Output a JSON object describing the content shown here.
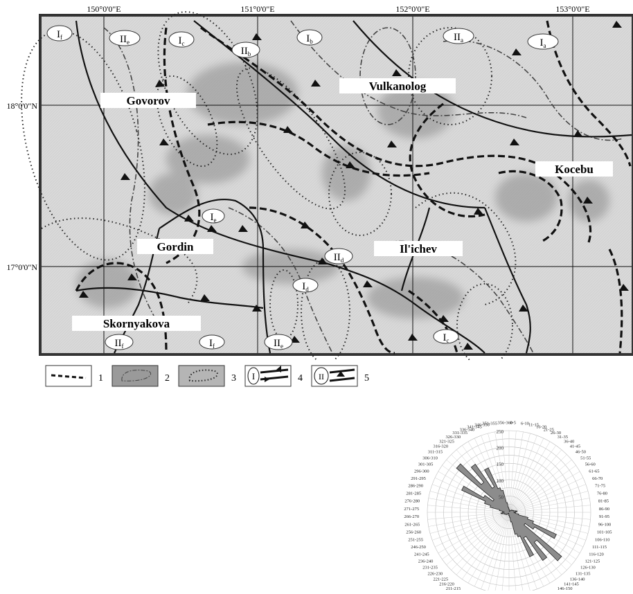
{
  "map": {
    "axis_labels": {
      "lon": [
        "150°0'0\"E",
        "151°0'0\"E",
        "152°0'0\"E",
        "153°0'0\"E"
      ],
      "lat": [
        "18°0'0\"N",
        "17°0'0\"N"
      ]
    },
    "seamounts": [
      "Govorov",
      "Vulkanolog",
      "Kocebu",
      "Gordin",
      "Il'ichev",
      "Skornyakova"
    ],
    "zone_labels": [
      {
        "main": "I",
        "sub": "f"
      },
      {
        "main": "II",
        "sub": "e"
      },
      {
        "main": "I",
        "sub": "c"
      },
      {
        "main": "II",
        "sub": "b"
      },
      {
        "main": "I",
        "sub": "b"
      },
      {
        "main": "II",
        "sub": "a"
      },
      {
        "main": "I",
        "sub": "a"
      },
      {
        "main": "I",
        "sub": "e"
      },
      {
        "main": "II",
        "sub": "d"
      },
      {
        "main": "I",
        "sub": "d"
      },
      {
        "main": "II",
        "sub": "f"
      },
      {
        "main": "I",
        "sub": "f"
      },
      {
        "main": "II",
        "sub": "e"
      },
      {
        "main": "I",
        "sub": "c"
      }
    ]
  },
  "legend": {
    "items": [
      {
        "number": "1",
        "symbol": "dashed-boundary"
      },
      {
        "number": "2",
        "symbol": "dash-dot-contour"
      },
      {
        "number": "3",
        "symbol": "dotted-contour"
      },
      {
        "number": "4",
        "symbol": "fault-type-I",
        "roman": "I"
      },
      {
        "number": "5",
        "symbol": "fault-type-II",
        "roman": "II"
      }
    ]
  },
  "chart_data": {
    "type": "rose",
    "title": "",
    "radial_ticks": [
      50,
      100,
      150,
      200,
      250
    ],
    "radial_max": 250,
    "sector_labels": [
      "0-5",
      "6-10",
      "11-15",
      "16-20",
      "21-25",
      "26-30",
      "31-35",
      "36-40",
      "41-45",
      "46-50",
      "51-55",
      "56-60",
      "61-65",
      "66-70",
      "71-75",
      "76-80",
      "81-85",
      "86-90",
      "91-95",
      "96-100",
      "101-105",
      "106-110",
      "111-115",
      "116-120",
      "121-125",
      "126-130",
      "131-135",
      "136-140",
      "141-145",
      "146-150",
      "151-155",
      "156-160",
      "161-165",
      "166-170",
      "171-175",
      "176-180",
      "181-185",
      "186-190",
      "191-195",
      "196-200",
      "201-205",
      "206-210",
      "211-215",
      "216-220",
      "221-225",
      "226-230",
      "231-235",
      "236-240",
      "241-245",
      "246-250",
      "251-255",
      "256-260",
      "261-265",
      "266-270",
      "271-275",
      "276-280",
      "281-285",
      "286-290",
      "291-295",
      "296-300",
      "301-305",
      "306-310",
      "311-315",
      "316-320",
      "321-325",
      "326-330",
      "331-335",
      "336-340",
      "341-345",
      "346-350",
      "351-355",
      "356-360"
    ],
    "values": [
      10,
      5,
      4,
      3,
      3,
      4,
      5,
      6,
      8,
      10,
      10,
      12,
      12,
      14,
      15,
      20,
      25,
      20,
      15,
      20,
      30,
      60,
      80,
      160,
      90,
      60,
      210,
      120,
      180,
      90,
      150,
      80,
      70,
      30,
      15,
      10,
      10,
      5,
      4,
      3,
      3,
      4,
      5,
      6,
      8,
      10,
      10,
      12,
      12,
      14,
      15,
      20,
      25,
      20,
      15,
      20,
      30,
      60,
      80,
      160,
      90,
      60,
      210,
      120,
      180,
      90,
      150,
      80,
      70,
      30,
      15,
      10
    ]
  }
}
